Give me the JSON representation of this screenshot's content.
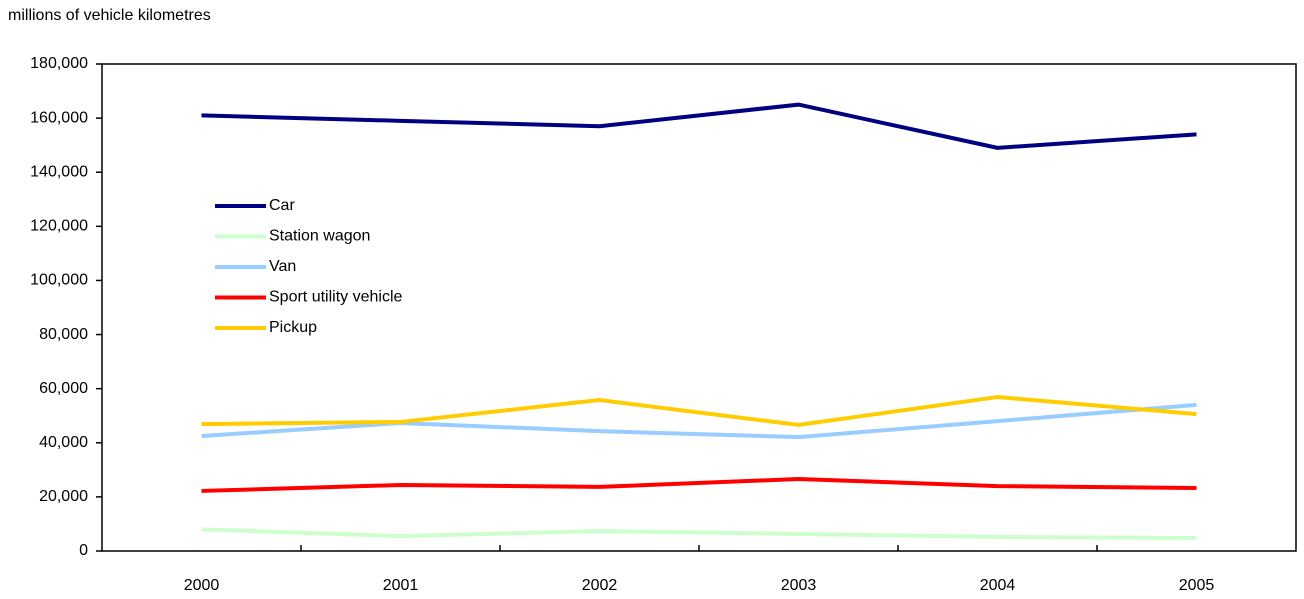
{
  "chart_data": {
    "type": "line",
    "y_label": "millions of vehicle kilometres",
    "categories": [
      "2000",
      "2001",
      "2002",
      "2003",
      "2004",
      "2005"
    ],
    "series": [
      {
        "name": "Car",
        "color": "#000080",
        "values": [
          161000,
          159000,
          157000,
          165000,
          149000,
          154000
        ]
      },
      {
        "name": "Station wagon",
        "color": "#ccffcc",
        "values": [
          8000,
          5500,
          7400,
          6300,
          5200,
          4800
        ]
      },
      {
        "name": "Van",
        "color": "#99ccff",
        "values": [
          42500,
          47300,
          44300,
          42100,
          48000,
          54000
        ]
      },
      {
        "name": "Sport utility vehicle",
        "color": "#ff0000",
        "values": [
          22200,
          24400,
          23700,
          26600,
          24000,
          23300
        ]
      },
      {
        "name": "Pickup",
        "color": "#ffcc00",
        "values": [
          46900,
          47700,
          55800,
          46600,
          56900,
          50600
        ]
      }
    ],
    "ylim": [
      0,
      180000
    ],
    "yticks": [
      0,
      {
        "value": 20000,
        "label": "20,000"
      },
      {
        "value": 40000,
        "label": "40,000"
      },
      {
        "value": 60000,
        "label": "60,000"
      },
      {
        "value": 80000,
        "label": "80,000"
      },
      {
        "value": 100000,
        "label": "100,000"
      },
      {
        "value": 120000,
        "label": "120,000"
      },
      {
        "value": 140000,
        "label": "140,000"
      },
      {
        "value": 160000,
        "label": "160,000"
      },
      {
        "value": 180000,
        "label": "180,000"
      }
    ],
    "legend": "upper left"
  }
}
